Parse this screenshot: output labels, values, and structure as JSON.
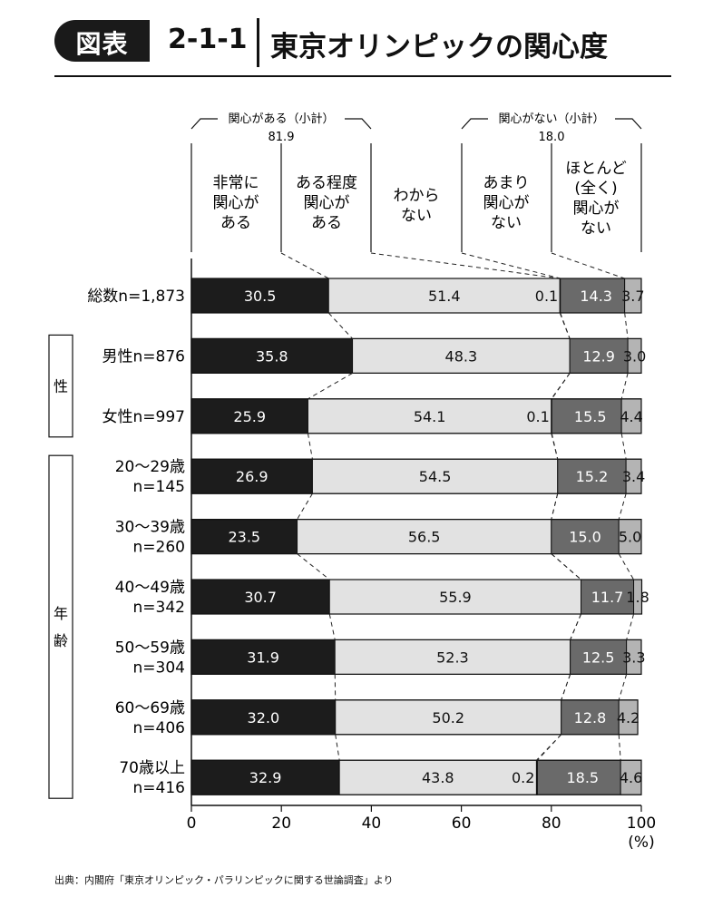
{
  "header": {
    "badge": "図表",
    "figure_number": "2-1-1",
    "title": "東京オリンピックの関心度"
  },
  "source": "出典：内閣府「東京オリンピック・パラリンピックに関する世論調査」より",
  "colors": {
    "very_interested": "#1c1c1c",
    "somewhat_interested": "#e2e2e2",
    "dont_know": "#ffffff",
    "not_very_interested": "#6a6a6a",
    "not_interested_at_all": "#b4b4b4"
  },
  "chart_data": {
    "type": "bar",
    "orientation": "horizontal",
    "stacked": true,
    "xlim": [
      0,
      100
    ],
    "x_ticks": [
      "0",
      "20",
      "40",
      "60",
      "80",
      "100"
    ],
    "x_unit": "(%)",
    "group_labels": [
      "性",
      "年\n齢"
    ],
    "summary_labels": [
      {
        "label": "関心がある（小計）",
        "value": "81.9"
      },
      {
        "label": "関心がない（小計）",
        "value": "18.0"
      }
    ],
    "categories": [
      "総数n=1,873",
      "男性n=876",
      "女性n=997",
      "20～29歳\nn=145",
      "30～39歳\nn=260",
      "40～49歳\nn=342",
      "50～59歳\nn=304",
      "60～69歳\nn=406",
      "70歳以上\nn=416"
    ],
    "series": [
      {
        "name": "非常に\n関心が\nある",
        "values": [
          30.5,
          35.8,
          25.9,
          26.9,
          23.5,
          30.7,
          31.9,
          32.0,
          32.9
        ],
        "labels": [
          "30.5",
          "35.8",
          "25.9",
          "26.9",
          "23.5",
          "30.7",
          "31.9",
          "32.0",
          "32.9"
        ]
      },
      {
        "name": "ある程度\n関心が\nある",
        "values": [
          51.4,
          48.3,
          54.1,
          54.5,
          56.5,
          55.9,
          52.3,
          50.2,
          43.8
        ],
        "labels": [
          "51.4",
          "48.3",
          "54.1",
          "54.5",
          "56.5",
          "55.9",
          "52.3",
          "50.2",
          "43.8"
        ]
      },
      {
        "name": "わから\nない",
        "values": [
          0.1,
          0,
          0.1,
          0,
          0,
          0,
          0,
          0,
          0.2
        ],
        "labels": [
          "0.1",
          "",
          "0.1",
          "",
          "",
          "",
          "",
          "",
          "0.2"
        ]
      },
      {
        "name": "あまり\n関心が\nない",
        "values": [
          14.3,
          12.9,
          15.5,
          15.2,
          15.0,
          11.7,
          12.5,
          12.8,
          18.5
        ],
        "labels": [
          "14.3",
          "12.9",
          "15.5",
          "15.2",
          "15.0",
          "11.7",
          "12.5",
          "12.8",
          "18.5"
        ]
      },
      {
        "name": "ほとんど\n(全く)\n関心が\nない",
        "values": [
          3.7,
          3.0,
          4.4,
          3.4,
          5.0,
          1.8,
          3.3,
          4.2,
          4.6
        ],
        "labels": [
          "3.7",
          "3.0",
          "4.4",
          "3.4",
          "5.0",
          "1.8",
          "3.3",
          "4.2",
          "4.6"
        ]
      }
    ]
  }
}
